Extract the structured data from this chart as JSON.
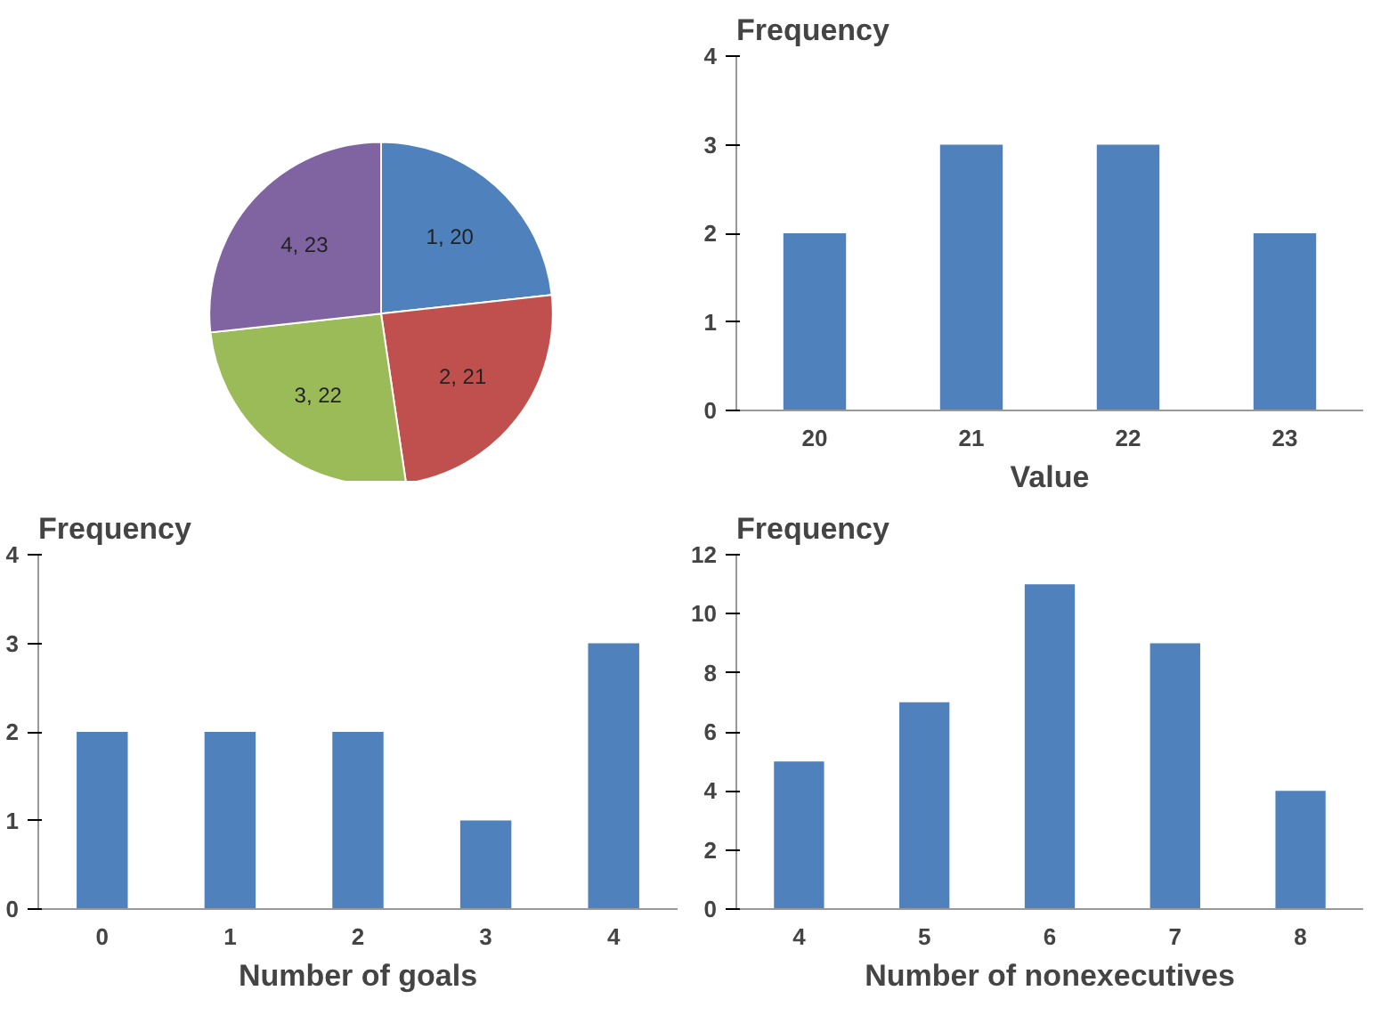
{
  "chart_data": [
    {
      "type": "pie",
      "categories": [
        "1, 20",
        "2, 21",
        "3, 22",
        "4, 23"
      ],
      "values": [
        20,
        21,
        22,
        23
      ],
      "colors": [
        "#4f81bd",
        "#c0504d",
        "#9bbb59",
        "#8064a2"
      ]
    },
    {
      "type": "bar",
      "categories": [
        "20",
        "21",
        "22",
        "23"
      ],
      "values": [
        2,
        3,
        3,
        2
      ],
      "color": "#4f81bd",
      "ylabel": "Frequency",
      "xlabel": "Value",
      "ylim": [
        0,
        4
      ],
      "yticks": [
        0,
        1,
        2,
        3,
        4
      ],
      "grid": false
    },
    {
      "type": "bar",
      "categories": [
        "0",
        "1",
        "2",
        "3",
        "4"
      ],
      "values": [
        2,
        2,
        2,
        1,
        3
      ],
      "color": "#4f81bd",
      "ylabel": "Frequency",
      "xlabel": "Number of goals",
      "ylim": [
        0,
        4
      ],
      "yticks": [
        0,
        1,
        2,
        3,
        4
      ],
      "grid": false
    },
    {
      "type": "bar",
      "categories": [
        "4",
        "5",
        "6",
        "7",
        "8"
      ],
      "values": [
        5,
        7,
        11,
        9,
        4
      ],
      "color": "#4f81bd",
      "ylabel": "Frequency",
      "xlabel": "Number of nonexecutives",
      "ylim": [
        0,
        12
      ],
      "yticks": [
        0,
        2,
        4,
        6,
        8,
        10,
        12
      ],
      "grid": false
    }
  ]
}
